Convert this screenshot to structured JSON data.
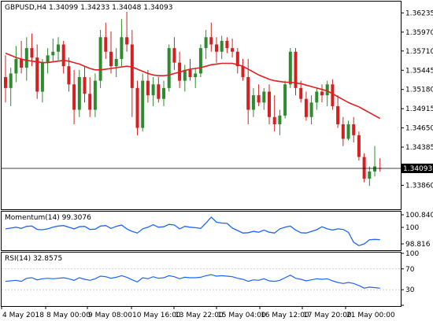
{
  "colors": {
    "bull": "#2e8b2e",
    "bear": "#d42020",
    "ma_line": "#e02020",
    "indicator_line": "#1e64ff",
    "price_tag_bg": "#000000",
    "price_tag_text": "#ffffff",
    "rsi_level": "#c8c8c8"
  },
  "chart_data": [
    {
      "type": "candlestick",
      "title": "GBPUSD,H4  1.34099 1.34233 1.34048 1.34093",
      "ylim": [
        1.3354,
        1.3638
      ],
      "y_ticks": [
        1.3386,
        1.34093,
        1.34385,
        1.3465,
        1.34915,
        1.3518,
        1.35445,
        1.3571,
        1.3597,
        1.36235
      ],
      "y_tick_labels": [
        "1.33860",
        "1.34093",
        "1.34385",
        "1.34650",
        "1.34915",
        "1.35180",
        "1.35445",
        "1.35710",
        "1.35970",
        "1.36235"
      ],
      "last_price": 1.34093,
      "last_price_label": "1.34093",
      "ohlc": [
        [
          1.3535,
          1.3565,
          1.35,
          1.352
        ],
        [
          1.352,
          1.3548,
          1.3495,
          1.354
        ],
        [
          1.354,
          1.3578,
          1.3528,
          1.356
        ],
        [
          1.356,
          1.3585,
          1.354,
          1.3548
        ],
        [
          1.3548,
          1.359,
          1.353,
          1.3575
        ],
        [
          1.3575,
          1.3595,
          1.355,
          1.3562
        ],
        [
          1.3562,
          1.358,
          1.3505,
          1.3515
        ],
        [
          1.3515,
          1.356,
          1.35,
          1.3555
        ],
        [
          1.3555,
          1.3575,
          1.354,
          1.3565
        ],
        [
          1.3565,
          1.3588,
          1.3555,
          1.357
        ],
        [
          1.357,
          1.359,
          1.3558,
          1.358
        ],
        [
          1.358,
          1.3585,
          1.354,
          1.355
        ],
        [
          1.355,
          1.3562,
          1.3515,
          1.3525
        ],
        [
          1.3525,
          1.3545,
          1.347,
          1.349
        ],
        [
          1.349,
          1.3545,
          1.348,
          1.3535
        ],
        [
          1.3535,
          1.355,
          1.35,
          1.3512
        ],
        [
          1.3512,
          1.3535,
          1.348,
          1.349
        ],
        [
          1.349,
          1.354,
          1.348,
          1.353
        ],
        [
          1.353,
          1.36,
          1.352,
          1.359
        ],
        [
          1.359,
          1.361,
          1.356,
          1.357
        ],
        [
          1.357,
          1.3598,
          1.354,
          1.355
        ],
        [
          1.355,
          1.3575,
          1.3535,
          1.356
        ],
        [
          1.356,
          1.3615,
          1.355,
          1.359
        ],
        [
          1.359,
          1.3625,
          1.357,
          1.358
        ],
        [
          1.358,
          1.36,
          1.348,
          1.352
        ],
        [
          1.352,
          1.353,
          1.3455,
          1.3465
        ],
        [
          1.3465,
          1.354,
          1.346,
          1.353
        ],
        [
          1.353,
          1.3545,
          1.35,
          1.351
        ],
        [
          1.351,
          1.3535,
          1.3495,
          1.3525
        ],
        [
          1.3525,
          1.3535,
          1.35,
          1.3505
        ],
        [
          1.3505,
          1.353,
          1.3495,
          1.352
        ],
        [
          1.352,
          1.358,
          1.3515,
          1.3575
        ],
        [
          1.3575,
          1.359,
          1.3545,
          1.3555
        ],
        [
          1.3555,
          1.357,
          1.352,
          1.353
        ],
        [
          1.353,
          1.3552,
          1.3515,
          1.3545
        ],
        [
          1.3545,
          1.356,
          1.353,
          1.3535
        ],
        [
          1.3535,
          1.3548,
          1.352,
          1.354
        ],
        [
          1.354,
          1.358,
          1.3535,
          1.3575
        ],
        [
          1.3575,
          1.36,
          1.356,
          1.359
        ],
        [
          1.359,
          1.361,
          1.357,
          1.358
        ],
        [
          1.358,
          1.359,
          1.3555,
          1.357
        ],
        [
          1.357,
          1.3592,
          1.356,
          1.3585
        ],
        [
          1.3585,
          1.359,
          1.3568,
          1.3575
        ],
        [
          1.3575,
          1.3588,
          1.3562,
          1.357
        ],
        [
          1.357,
          1.3575,
          1.354,
          1.355
        ],
        [
          1.355,
          1.356,
          1.353,
          1.3535
        ],
        [
          1.3535,
          1.356,
          1.347,
          1.349
        ],
        [
          1.349,
          1.352,
          1.348,
          1.351
        ],
        [
          1.351,
          1.3525,
          1.3495,
          1.35
        ],
        [
          1.35,
          1.352,
          1.349,
          1.3515
        ],
        [
          1.3515,
          1.3525,
          1.347,
          1.348
        ],
        [
          1.348,
          1.351,
          1.346,
          1.347
        ],
        [
          1.347,
          1.349,
          1.3455,
          1.3482
        ],
        [
          1.3482,
          1.353,
          1.3478,
          1.3525
        ],
        [
          1.3525,
          1.3575,
          1.352,
          1.357
        ],
        [
          1.357,
          1.3575,
          1.351,
          1.352
        ],
        [
          1.352,
          1.353,
          1.35,
          1.3505
        ],
        [
          1.3505,
          1.3515,
          1.3475,
          1.348
        ],
        [
          1.348,
          1.351,
          1.347,
          1.35
        ],
        [
          1.35,
          1.352,
          1.349,
          1.3515
        ],
        [
          1.3515,
          1.3525,
          1.35,
          1.351
        ],
        [
          1.351,
          1.353,
          1.3495,
          1.3525
        ],
        [
          1.3525,
          1.3532,
          1.349,
          1.3495
        ],
        [
          1.3495,
          1.351,
          1.3465,
          1.347
        ],
        [
          1.347,
          1.348,
          1.344,
          1.345
        ],
        [
          1.345,
          1.3475,
          1.3448,
          1.347
        ],
        [
          1.347,
          1.348,
          1.3445,
          1.3455
        ],
        [
          1.3455,
          1.346,
          1.342,
          1.3425
        ],
        [
          1.3425,
          1.343,
          1.339,
          1.3395
        ],
        [
          1.3395,
          1.3412,
          1.3385,
          1.3405
        ],
        [
          1.3405,
          1.344,
          1.3398,
          1.3412
        ],
        [
          1.34099,
          1.34233,
          1.34048,
          1.34093
        ]
      ],
      "ma": [
        1.3568,
        1.3565,
        1.3562,
        1.356,
        1.3558,
        1.3557,
        1.3556,
        1.3555,
        1.3555,
        1.3556,
        1.3557,
        1.3558,
        1.3557,
        1.3555,
        1.3553,
        1.355,
        1.3547,
        1.3545,
        1.3545,
        1.3546,
        1.3547,
        1.3548,
        1.3549,
        1.355,
        1.3549,
        1.3546,
        1.3543,
        1.354,
        1.3538,
        1.3537,
        1.3537,
        1.3538,
        1.354,
        1.3542,
        1.3544,
        1.3546,
        1.3547,
        1.3548,
        1.355,
        1.3552,
        1.3553,
        1.3554,
        1.3554,
        1.3554,
        1.3552,
        1.355,
        1.3546,
        1.3542,
        1.3538,
        1.3535,
        1.3532,
        1.353,
        1.3529,
        1.3528,
        1.3528,
        1.3527,
        1.3526,
        1.3524,
        1.3522,
        1.352,
        1.3518,
        1.3516,
        1.3512,
        1.3508,
        1.3504,
        1.35,
        1.3497,
        1.3494,
        1.349,
        1.3486,
        1.3482,
        1.3478
      ],
      "x_labels": [
        "4 May 2018",
        "8 May 00:00",
        "9 May 08:00",
        "10 May 16:00",
        "13 May 22:00",
        "15 May 04:00",
        "16 May 12:00",
        "17 May 20:00",
        "21 May 00:00"
      ]
    },
    {
      "type": "line",
      "title": "Momentum(14) 99.3076",
      "ylim": [
        98.816,
        100.8406
      ],
      "y_tick_labels": [
        "100.8406",
        "100",
        "98.816"
      ],
      "y_ticks": [
        100.8406,
        100,
        98.816
      ],
      "series": [
        {
          "name": "Momentum(14)",
          "values": [
            99.95,
            100.0,
            100.05,
            99.98,
            100.1,
            100.12,
            99.92,
            99.9,
            99.95,
            100.05,
            100.12,
            100.15,
            100.05,
            99.95,
            100.08,
            100.1,
            99.92,
            99.93,
            100.12,
            100.15,
            99.98,
            100.1,
            100.18,
            99.95,
            99.8,
            99.7,
            99.95,
            100.05,
            100.2,
            100.05,
            100.08,
            100.22,
            100.18,
            99.95,
            100.1,
            100.05,
            100.02,
            99.98,
            100.3,
            100.65,
            100.35,
            100.3,
            100.28,
            100.0,
            99.85,
            99.7,
            99.72,
            99.8,
            99.75,
            99.88,
            99.75,
            99.7,
            99.95,
            100.05,
            100.12,
            99.88,
            99.72,
            99.7,
            99.8,
            99.9,
            100.08,
            99.95,
            99.88,
            99.95,
            99.92,
            99.75,
            99.15,
            98.95,
            99.05,
            99.3,
            99.32,
            99.3076
          ]
        }
      ]
    },
    {
      "type": "line",
      "title": "RSI(14) 32.8575",
      "ylim": [
        0,
        100
      ],
      "y_ticks": [
        100,
        70,
        30,
        0
      ],
      "y_tick_labels": [
        "100",
        "70",
        "30",
        "0"
      ],
      "levels": [
        70,
        30
      ],
      "series": [
        {
          "name": "RSI(14)",
          "values": [
            46,
            47,
            48,
            46,
            52,
            53,
            49,
            51,
            52,
            51,
            52,
            53,
            51,
            48,
            53,
            50,
            48,
            51,
            56,
            55,
            52,
            54,
            57,
            54,
            49,
            45,
            53,
            51,
            55,
            52,
            53,
            57,
            55,
            51,
            54,
            53,
            53,
            54,
            57,
            59,
            56,
            57,
            56,
            55,
            52,
            50,
            46,
            49,
            48,
            51,
            47,
            46,
            48,
            53,
            58,
            52,
            50,
            47,
            49,
            51,
            50,
            51,
            47,
            44,
            42,
            44,
            42,
            38,
            33,
            35,
            34,
            32.8575
          ]
        }
      ]
    }
  ]
}
